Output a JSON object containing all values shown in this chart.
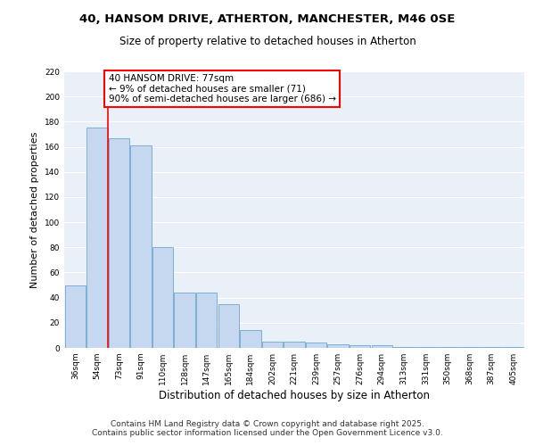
{
  "title": "40, HANSOM DRIVE, ATHERTON, MANCHESTER, M46 0SE",
  "subtitle": "Size of property relative to detached houses in Atherton",
  "xlabel": "Distribution of detached houses by size in Atherton",
  "ylabel": "Number of detached properties",
  "categories": [
    "36sqm",
    "54sqm",
    "73sqm",
    "91sqm",
    "110sqm",
    "128sqm",
    "147sqm",
    "165sqm",
    "184sqm",
    "202sqm",
    "221sqm",
    "239sqm",
    "257sqm",
    "276sqm",
    "294sqm",
    "313sqm",
    "331sqm",
    "350sqm",
    "368sqm",
    "387sqm",
    "405sqm"
  ],
  "values": [
    50,
    175,
    167,
    161,
    80,
    44,
    44,
    35,
    14,
    5,
    5,
    4,
    3,
    2,
    2,
    1,
    1,
    1,
    1,
    1,
    1
  ],
  "bar_color": "#c5d8f0",
  "bar_edge_color": "#7bafd4",
  "bar_edge_width": 0.7,
  "red_line_index": 2,
  "annotation_text": "40 HANSOM DRIVE: 77sqm\n← 9% of detached houses are smaller (71)\n90% of semi-detached houses are larger (686) →",
  "annotation_box_color": "white",
  "annotation_box_edge_color": "red",
  "annotation_fontsize": 7.5,
  "ylim": [
    0,
    220
  ],
  "yticks": [
    0,
    20,
    40,
    60,
    80,
    100,
    120,
    140,
    160,
    180,
    200,
    220
  ],
  "bg_color": "#eaf0f8",
  "grid_color": "white",
  "title_fontsize": 9.5,
  "subtitle_fontsize": 8.5,
  "xlabel_fontsize": 8.5,
  "ylabel_fontsize": 8,
  "tick_fontsize": 6.5,
  "footer_text": "Contains HM Land Registry data © Crown copyright and database right 2025.\nContains public sector information licensed under the Open Government Licence v3.0.",
  "footer_fontsize": 6.5
}
